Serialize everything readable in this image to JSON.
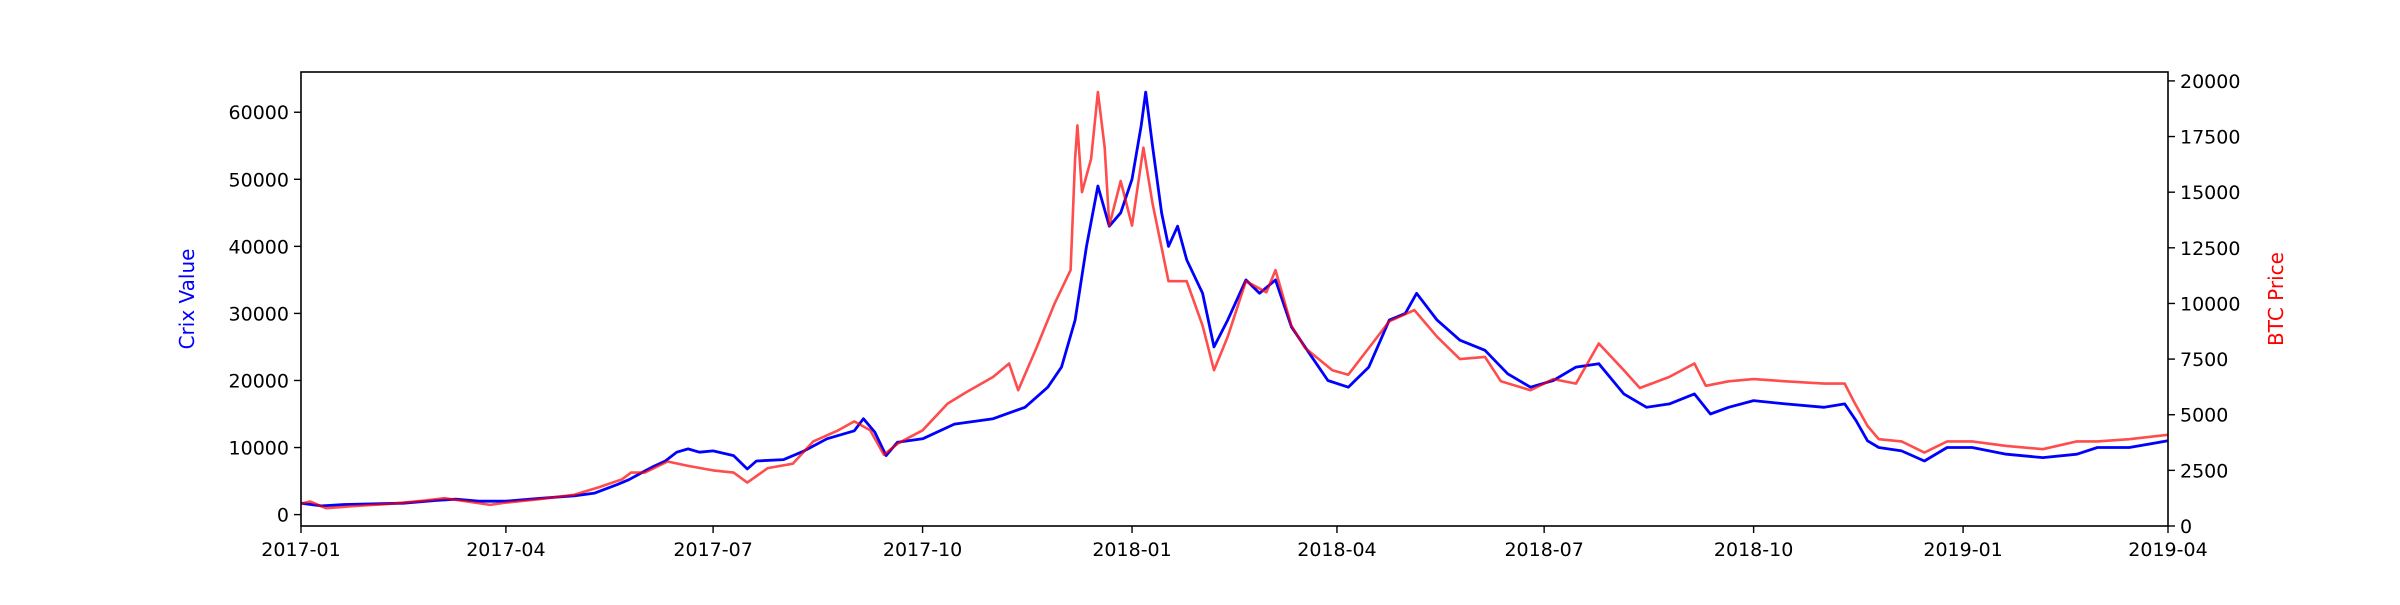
{
  "chart_data": {
    "type": "line",
    "xlim": [
      "2017-01-01",
      "2019-04-01"
    ],
    "x_ticks": [
      "2017-01-01",
      "2017-04-01",
      "2017-07-01",
      "2017-10-01",
      "2018-01-01",
      "2018-04-01",
      "2018-07-01",
      "2018-10-01",
      "2019-01-01",
      "2019-04-01"
    ],
    "x_tick_labels": [
      "2017-01",
      "2017-04",
      "2017-07",
      "2017-10",
      "2018-01",
      "2018-04",
      "2018-07",
      "2018-10",
      "2019-01",
      "2019-04"
    ],
    "left_axis": {
      "label": "Crix Value",
      "color": "#0000ff",
      "ylim": [
        -1700,
        66000
      ],
      "ticks": [
        0,
        10000,
        20000,
        30000,
        40000,
        50000,
        60000
      ],
      "tick_labels": [
        "0",
        "10000",
        "20000",
        "30000",
        "40000",
        "50000",
        "60000"
      ]
    },
    "right_axis": {
      "label": "BTC Price",
      "color": "#ff0000",
      "ylim": [
        0,
        20400
      ],
      "ticks": [
        0,
        2500,
        5000,
        7500,
        10000,
        12500,
        15000,
        17500,
        20000
      ],
      "tick_labels": [
        "0",
        "2500",
        "5000",
        "7500",
        "10000",
        "12500",
        "15000",
        "17500",
        "20000"
      ]
    },
    "grid": false,
    "series": [
      {
        "name": "Crix Value",
        "axis": "left",
        "color": "#0000ff",
        "points": [
          [
            "2017-01-01",
            1700
          ],
          [
            "2017-01-10",
            1300
          ],
          [
            "2017-01-20",
            1500
          ],
          [
            "2017-02-01",
            1600
          ],
          [
            "2017-02-15",
            1700
          ],
          [
            "2017-03-01",
            2100
          ],
          [
            "2017-03-10",
            2300
          ],
          [
            "2017-03-20",
            2000
          ],
          [
            "2017-04-01",
            2000
          ],
          [
            "2017-04-15",
            2400
          ],
          [
            "2017-05-01",
            2800
          ],
          [
            "2017-05-10",
            3200
          ],
          [
            "2017-05-20",
            4500
          ],
          [
            "2017-05-25",
            5200
          ],
          [
            "2017-06-01",
            6500
          ],
          [
            "2017-06-05",
            7200
          ],
          [
            "2017-06-10",
            8000
          ],
          [
            "2017-06-15",
            9300
          ],
          [
            "2017-06-20",
            9800
          ],
          [
            "2017-06-25",
            9300
          ],
          [
            "2017-07-01",
            9500
          ],
          [
            "2017-07-10",
            8800
          ],
          [
            "2017-07-16",
            6800
          ],
          [
            "2017-07-20",
            8000
          ],
          [
            "2017-08-01",
            8200
          ],
          [
            "2017-08-10",
            9500
          ],
          [
            "2017-08-20",
            11300
          ],
          [
            "2017-09-01",
            12500
          ],
          [
            "2017-09-05",
            14300
          ],
          [
            "2017-09-10",
            12300
          ],
          [
            "2017-09-15",
            8800
          ],
          [
            "2017-09-20",
            10800
          ],
          [
            "2017-10-01",
            11300
          ],
          [
            "2017-10-15",
            13500
          ],
          [
            "2017-11-01",
            14300
          ],
          [
            "2017-11-15",
            16000
          ],
          [
            "2017-11-25",
            19000
          ],
          [
            "2017-12-01",
            22000
          ],
          [
            "2017-12-07",
            29000
          ],
          [
            "2017-12-12",
            40000
          ],
          [
            "2017-12-17",
            49000
          ],
          [
            "2017-12-22",
            43000
          ],
          [
            "2017-12-27",
            45000
          ],
          [
            "2018-01-01",
            50000
          ],
          [
            "2018-01-05",
            58000
          ],
          [
            "2018-01-07",
            63000
          ],
          [
            "2018-01-10",
            55000
          ],
          [
            "2018-01-14",
            45000
          ],
          [
            "2018-01-17",
            40000
          ],
          [
            "2018-01-21",
            43000
          ],
          [
            "2018-01-25",
            38000
          ],
          [
            "2018-02-01",
            33000
          ],
          [
            "2018-02-06",
            25000
          ],
          [
            "2018-02-12",
            29000
          ],
          [
            "2018-02-20",
            35000
          ],
          [
            "2018-02-26",
            33000
          ],
          [
            "2018-03-05",
            35000
          ],
          [
            "2018-03-12",
            28000
          ],
          [
            "2018-03-20",
            24000
          ],
          [
            "2018-03-28",
            20000
          ],
          [
            "2018-04-06",
            19000
          ],
          [
            "2018-04-15",
            22000
          ],
          [
            "2018-04-24",
            29000
          ],
          [
            "2018-05-01",
            30000
          ],
          [
            "2018-05-06",
            33000
          ],
          [
            "2018-05-15",
            29000
          ],
          [
            "2018-05-25",
            26000
          ],
          [
            "2018-06-05",
            24500
          ],
          [
            "2018-06-15",
            21000
          ],
          [
            "2018-06-25",
            19000
          ],
          [
            "2018-07-05",
            20000
          ],
          [
            "2018-07-15",
            22000
          ],
          [
            "2018-07-25",
            22500
          ],
          [
            "2018-08-05",
            18000
          ],
          [
            "2018-08-15",
            16000
          ],
          [
            "2018-08-25",
            16500
          ],
          [
            "2018-09-05",
            18000
          ],
          [
            "2018-09-12",
            15000
          ],
          [
            "2018-09-20",
            16000
          ],
          [
            "2018-10-01",
            17000
          ],
          [
            "2018-10-15",
            16500
          ],
          [
            "2018-11-01",
            16000
          ],
          [
            "2018-11-10",
            16500
          ],
          [
            "2018-11-15",
            14000
          ],
          [
            "2018-11-20",
            11000
          ],
          [
            "2018-11-25",
            10000
          ],
          [
            "2018-12-05",
            9500
          ],
          [
            "2018-12-15",
            8000
          ],
          [
            "2018-12-25",
            10000
          ],
          [
            "2019-01-05",
            10000
          ],
          [
            "2019-01-20",
            9000
          ],
          [
            "2019-02-05",
            8500
          ],
          [
            "2019-02-20",
            9000
          ],
          [
            "2019-03-01",
            10000
          ],
          [
            "2019-03-15",
            10000
          ],
          [
            "2019-04-01",
            11000
          ]
        ]
      },
      {
        "name": "BTC Price",
        "axis": "right",
        "color": "#ff0000",
        "opacity": 0.7,
        "points": [
          [
            "2017-01-01",
            1000
          ],
          [
            "2017-01-05",
            1100
          ],
          [
            "2017-01-12",
            800
          ],
          [
            "2017-01-25",
            900
          ],
          [
            "2017-02-10",
            1000
          ],
          [
            "2017-02-25",
            1150
          ],
          [
            "2017-03-05",
            1250
          ],
          [
            "2017-03-15",
            1100
          ],
          [
            "2017-03-25",
            950
          ],
          [
            "2017-04-01",
            1050
          ],
          [
            "2017-04-15",
            1200
          ],
          [
            "2017-05-01",
            1400
          ],
          [
            "2017-05-12",
            1750
          ],
          [
            "2017-05-22",
            2100
          ],
          [
            "2017-05-26",
            2400
          ],
          [
            "2017-06-01",
            2400
          ],
          [
            "2017-06-11",
            2900
          ],
          [
            "2017-06-20",
            2700
          ],
          [
            "2017-07-01",
            2500
          ],
          [
            "2017-07-10",
            2400
          ],
          [
            "2017-07-16",
            1950
          ],
          [
            "2017-07-25",
            2600
          ],
          [
            "2017-08-05",
            2800
          ],
          [
            "2017-08-14",
            3800
          ],
          [
            "2017-08-25",
            4300
          ],
          [
            "2017-09-01",
            4700
          ],
          [
            "2017-09-08",
            4300
          ],
          [
            "2017-09-14",
            3200
          ],
          [
            "2017-09-20",
            3700
          ],
          [
            "2017-10-01",
            4300
          ],
          [
            "2017-10-12",
            5500
          ],
          [
            "2017-10-20",
            6000
          ],
          [
            "2017-11-01",
            6700
          ],
          [
            "2017-11-08",
            7300
          ],
          [
            "2017-11-12",
            6100
          ],
          [
            "2017-11-20",
            8000
          ],
          [
            "2017-11-28",
            10000
          ],
          [
            "2017-12-05",
            11500
          ],
          [
            "2017-12-07",
            16500
          ],
          [
            "2017-12-08",
            18000
          ],
          [
            "2017-12-10",
            15000
          ],
          [
            "2017-12-14",
            16500
          ],
          [
            "2017-12-17",
            19500
          ],
          [
            "2017-12-20",
            17000
          ],
          [
            "2017-12-22",
            13500
          ],
          [
            "2017-12-27",
            15500
          ],
          [
            "2018-01-01",
            13500
          ],
          [
            "2018-01-06",
            17000
          ],
          [
            "2018-01-10",
            14500
          ],
          [
            "2018-01-17",
            11000
          ],
          [
            "2018-01-25",
            11000
          ],
          [
            "2018-02-01",
            9000
          ],
          [
            "2018-02-06",
            7000
          ],
          [
            "2018-02-12",
            8500
          ],
          [
            "2018-02-20",
            11000
          ],
          [
            "2018-03-01",
            10500
          ],
          [
            "2018-03-05",
            11500
          ],
          [
            "2018-03-12",
            9000
          ],
          [
            "2018-03-18",
            8000
          ],
          [
            "2018-03-30",
            7000
          ],
          [
            "2018-04-06",
            6800
          ],
          [
            "2018-04-15",
            8000
          ],
          [
            "2018-04-24",
            9200
          ],
          [
            "2018-05-05",
            9700
          ],
          [
            "2018-05-15",
            8500
          ],
          [
            "2018-05-25",
            7500
          ],
          [
            "2018-06-05",
            7600
          ],
          [
            "2018-06-12",
            6500
          ],
          [
            "2018-06-25",
            6100
          ],
          [
            "2018-07-05",
            6600
          ],
          [
            "2018-07-15",
            6400
          ],
          [
            "2018-07-25",
            8200
          ],
          [
            "2018-08-05",
            7000
          ],
          [
            "2018-08-12",
            6200
          ],
          [
            "2018-08-25",
            6700
          ],
          [
            "2018-09-05",
            7300
          ],
          [
            "2018-09-10",
            6300
          ],
          [
            "2018-09-20",
            6500
          ],
          [
            "2018-10-01",
            6600
          ],
          [
            "2018-10-15",
            6500
          ],
          [
            "2018-11-01",
            6400
          ],
          [
            "2018-11-10",
            6400
          ],
          [
            "2018-11-14",
            5600
          ],
          [
            "2018-11-20",
            4500
          ],
          [
            "2018-11-25",
            3900
          ],
          [
            "2018-12-05",
            3800
          ],
          [
            "2018-12-15",
            3300
          ],
          [
            "2018-12-25",
            3800
          ],
          [
            "2019-01-05",
            3800
          ],
          [
            "2019-01-20",
            3600
          ],
          [
            "2019-02-05",
            3450
          ],
          [
            "2019-02-20",
            3800
          ],
          [
            "2019-03-01",
            3800
          ],
          [
            "2019-03-15",
            3900
          ],
          [
            "2019-04-01",
            4100
          ]
        ]
      }
    ]
  }
}
